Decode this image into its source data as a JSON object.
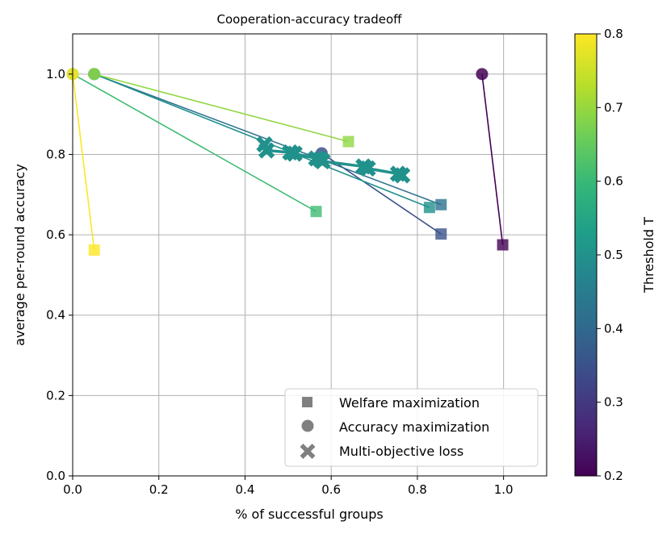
{
  "chart_data": {
    "type": "scatter",
    "title": "Cooperation-accuracy tradeoff",
    "xlabel": "% of successful groups",
    "ylabel": "average per-round accuracy",
    "xlim": [
      0.0,
      1.1
    ],
    "ylim": [
      0.0,
      1.1
    ],
    "xticks": [
      "0.0",
      "0.2",
      "0.4",
      "0.6",
      "0.8",
      "1.0"
    ],
    "yticks": [
      "0.0",
      "0.2",
      "0.4",
      "0.6",
      "0.8",
      "1.0"
    ],
    "grid": true,
    "legend": {
      "position": "lower-right",
      "entries": [
        {
          "label": "Welfare maximization",
          "marker": "square"
        },
        {
          "label": "Accuracy maximization",
          "marker": "circle"
        },
        {
          "label": "Multi-objective loss",
          "marker": "x"
        }
      ]
    },
    "colorbar": {
      "label": "Threshold T",
      "range": [
        0.2,
        0.8
      ],
      "ticks": [
        "0.2",
        "0.3",
        "0.4",
        "0.5",
        "0.6",
        "0.7",
        "0.8"
      ],
      "colormap": [
        "#440154",
        "#482878",
        "#3e4989",
        "#31688e",
        "#26828e",
        "#1f9e89",
        "#35b779",
        "#6ece58",
        "#b5de2b",
        "#fde725"
      ]
    },
    "series": [
      {
        "threshold": 0.2,
        "color": "#440154",
        "accuracy_max": {
          "x": 0.95,
          "y": 1.0
        },
        "welfare_max": {
          "x": 0.998,
          "y": 0.575
        }
      },
      {
        "threshold": 0.3,
        "color": "#3b528b",
        "accuracy_max": {
          "x": 0.578,
          "y": 0.803
        },
        "welfare_max": {
          "x": 0.855,
          "y": 0.602
        }
      },
      {
        "threshold": 0.4,
        "color": "#2c728e",
        "accuracy_max": {
          "x": 0.05,
          "y": 1.0
        },
        "welfare_max": {
          "x": 0.855,
          "y": 0.675
        }
      },
      {
        "threshold": 0.5,
        "color": "#21918c",
        "accuracy_max": {
          "x": 0.05,
          "y": 1.0
        },
        "welfare_max": {
          "x": 0.828,
          "y": 0.668
        }
      },
      {
        "threshold": 0.6,
        "color": "#3fbc73",
        "accuracy_max": {
          "x": 0.0,
          "y": 1.0
        },
        "welfare_max": {
          "x": 0.565,
          "y": 0.658
        }
      },
      {
        "threshold": 0.7,
        "color": "#90d743",
        "accuracy_max": {
          "x": 0.05,
          "y": 1.0
        },
        "welfare_max": {
          "x": 0.64,
          "y": 0.832
        }
      },
      {
        "threshold": 0.8,
        "color": "#fde725",
        "accuracy_max": {
          "x": 0.0,
          "y": 1.0
        },
        "welfare_max": {
          "x": 0.05,
          "y": 0.562
        }
      }
    ],
    "multi_objective": {
      "color": "#21918c",
      "points": [
        {
          "x": 0.445,
          "y": 0.825
        },
        {
          "x": 0.45,
          "y": 0.81
        },
        {
          "x": 0.505,
          "y": 0.805
        },
        {
          "x": 0.515,
          "y": 0.802
        },
        {
          "x": 0.565,
          "y": 0.79
        },
        {
          "x": 0.575,
          "y": 0.787
        },
        {
          "x": 0.58,
          "y": 0.783
        },
        {
          "x": 0.675,
          "y": 0.77
        },
        {
          "x": 0.685,
          "y": 0.765
        },
        {
          "x": 0.755,
          "y": 0.752
        },
        {
          "x": 0.765,
          "y": 0.748
        }
      ]
    }
  }
}
